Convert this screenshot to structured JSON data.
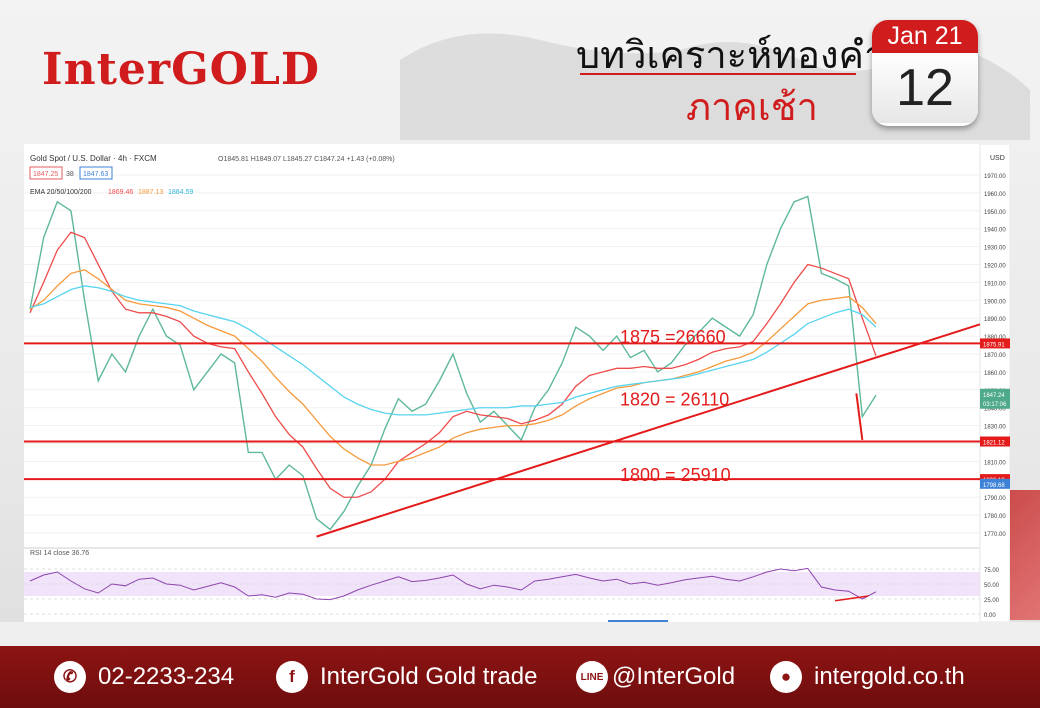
{
  "header": {
    "logo": "InterGOLD",
    "title_line1": "บทวิเคราะห์ทองคำ",
    "title_line2": "ภาคเช้า",
    "calendar_month": "Jan 21",
    "calendar_day": "12"
  },
  "chart_info": {
    "symbol_line": "Gold Spot / U.S. Dollar · 4h · FXCM",
    "ohlc_line": "O1845.81 H1849.07 L1845.27 C1847.24 +1.43 (+0.08%)",
    "bid": "1847.25",
    "spread": "38",
    "ask": "1847.63",
    "ema_label": "EMA 20/50/100/200",
    "ema_values": [
      "1869.46",
      "1887.13",
      "1884.59"
    ],
    "rsi_label": "RSI 14 close 36.76",
    "currency": "USD",
    "price_tag": "1847.24",
    "countdown_tag": "03:17:06",
    "level_tags": [
      "1875.91",
      "1821.12",
      "1800.13",
      "1798.68"
    ]
  },
  "chart_data": {
    "type": "line",
    "title": "Gold Spot / U.S. Dollar",
    "ylim": [
      1765,
      1975
    ],
    "y_ticks": [
      1770,
      1780,
      1790,
      1800,
      1810,
      1820,
      1830,
      1840,
      1850,
      1860,
      1870,
      1880,
      1890,
      1900,
      1910,
      1920,
      1930,
      1940,
      1950,
      1960,
      1970
    ],
    "rsi_ticks": [
      0,
      25,
      50,
      75
    ],
    "series": [
      {
        "name": "Price",
        "values": [
          1895,
          1935,
          1955,
          1950,
          1900,
          1855,
          1870,
          1860,
          1880,
          1895,
          1880,
          1875,
          1850,
          1860,
          1870,
          1865,
          1815,
          1815,
          1800,
          1808,
          1802,
          1778,
          1772,
          1782,
          1796,
          1808,
          1828,
          1845,
          1838,
          1842,
          1855,
          1870,
          1848,
          1832,
          1838,
          1830,
          1822,
          1840,
          1850,
          1865,
          1885,
          1880,
          1872,
          1880,
          1868,
          1872,
          1860,
          1865,
          1875,
          1882,
          1890,
          1885,
          1880,
          1892,
          1920,
          1940,
          1955,
          1958,
          1915,
          1912,
          1908,
          1835,
          1847
        ]
      },
      {
        "name": "EMA 20",
        "values": [
          1893,
          1910,
          1928,
          1938,
          1935,
          1920,
          1905,
          1895,
          1893,
          1893,
          1891,
          1888,
          1880,
          1876,
          1874,
          1873,
          1860,
          1848,
          1835,
          1825,
          1818,
          1806,
          1795,
          1790,
          1790,
          1793,
          1800,
          1810,
          1815,
          1820,
          1826,
          1835,
          1838,
          1836,
          1835,
          1834,
          1831,
          1833,
          1836,
          1842,
          1852,
          1858,
          1860,
          1862,
          1862,
          1863,
          1862,
          1862,
          1864,
          1867,
          1871,
          1873,
          1874,
          1877,
          1887,
          1898,
          1910,
          1920,
          1918,
          1915,
          1912,
          1890,
          1869
        ]
      },
      {
        "name": "EMA 50",
        "values": [
          1895,
          1900,
          1908,
          1915,
          1917,
          1912,
          1906,
          1900,
          1898,
          1897,
          1896,
          1894,
          1890,
          1886,
          1883,
          1880,
          1873,
          1866,
          1857,
          1849,
          1842,
          1833,
          1824,
          1817,
          1812,
          1808,
          1808,
          1810,
          1812,
          1815,
          1818,
          1823,
          1826,
          1828,
          1829,
          1830,
          1830,
          1831,
          1833,
          1836,
          1841,
          1845,
          1848,
          1851,
          1852,
          1854,
          1855,
          1856,
          1858,
          1860,
          1863,
          1866,
          1868,
          1871,
          1877,
          1884,
          1891,
          1898,
          1900,
          1901,
          1902,
          1896,
          1887
        ]
      },
      {
        "name": "EMA 100",
        "values": [
          1896,
          1898,
          1902,
          1906,
          1908,
          1907,
          1905,
          1902,
          1900,
          1899,
          1898,
          1897,
          1894,
          1892,
          1890,
          1888,
          1884,
          1879,
          1874,
          1869,
          1864,
          1858,
          1852,
          1846,
          1842,
          1839,
          1837,
          1836,
          1836,
          1836,
          1837,
          1838,
          1839,
          1840,
          1840,
          1840,
          1841,
          1841,
          1842,
          1843,
          1846,
          1848,
          1850,
          1852,
          1853,
          1854,
          1855,
          1856,
          1857,
          1859,
          1861,
          1863,
          1865,
          1867,
          1871,
          1876,
          1881,
          1887,
          1890,
          1893,
          1895,
          1892,
          1885
        ]
      }
    ],
    "rsi_values": [
      55,
      65,
      70,
      55,
      42,
      35,
      50,
      47,
      58,
      60,
      50,
      48,
      40,
      46,
      52,
      45,
      30,
      32,
      28,
      35,
      33,
      25,
      24,
      30,
      40,
      48,
      55,
      62,
      54,
      56,
      60,
      65,
      50,
      42,
      48,
      45,
      40,
      55,
      58,
      62,
      66,
      60,
      55,
      58,
      50,
      53,
      48,
      52,
      57,
      60,
      63,
      58,
      55,
      62,
      70,
      75,
      72,
      76,
      45,
      40,
      38,
      25,
      37
    ],
    "annotations": [
      {
        "text": "1875 =26660",
        "y": 1875
      },
      {
        "text": "1820 = 26110",
        "y": 1840
      },
      {
        "text": "1800 = 25910",
        "y": 1798
      }
    ],
    "horizontal_lines": [
      1875.91,
      1821.12,
      1800.13
    ],
    "trendline": {
      "from": [
        21,
        1768
      ],
      "to": [
        62,
        1868
      ]
    },
    "colors": {
      "price": "#5fb89a",
      "ema20": "#ef4b4b",
      "ema50": "#f59a3c",
      "ema100": "#58d4ef",
      "levels": "#e31b1b",
      "rsi": "#8e44ad"
    }
  },
  "footer": {
    "phone": "02-2233-234",
    "facebook": "InterGold Gold trade",
    "line": "@InterGold",
    "website": "intergold.co.th"
  }
}
